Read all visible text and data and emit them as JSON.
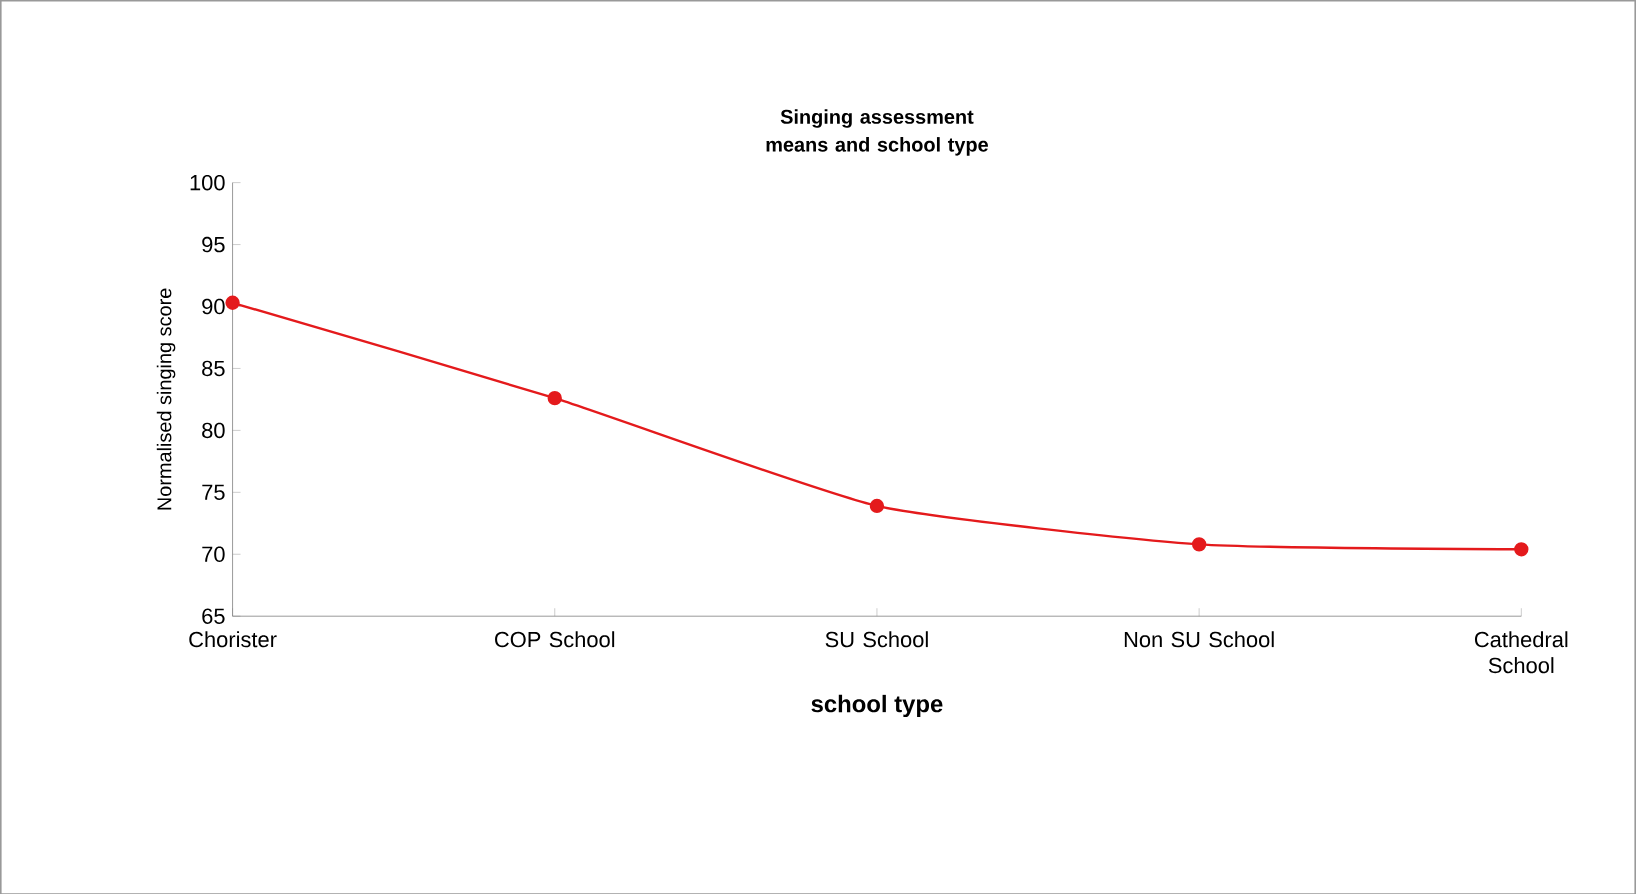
{
  "chart_data": {
    "type": "line",
    "title": "Singing assessment means and school type",
    "xlabel": "school type",
    "ylabel": "Normalised singing score",
    "categories": [
      "Chorister",
      "COP School",
      "SU School",
      "Non SU School",
      "Cathedral School"
    ],
    "series": [
      {
        "color": "#e41a1c",
        "values": [
          90.3,
          82.6,
          73.9,
          70.8,
          70.4
        ]
      }
    ],
    "ylim": [
      65,
      100
    ],
    "yticks": [
      65,
      70,
      75,
      80,
      85,
      90,
      95,
      100
    ],
    "marker": "circle",
    "line_style": "solid",
    "grid": false
  }
}
